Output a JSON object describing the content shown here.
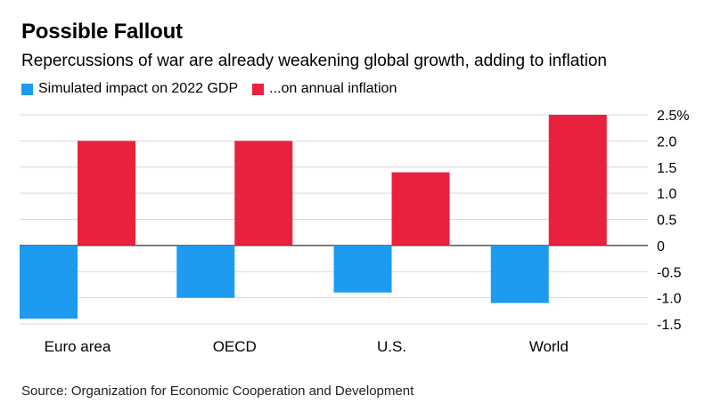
{
  "title": "Possible Fallout",
  "subtitle": "Repercussions of war are already weakening global growth, adding to inflation",
  "source": "Source: Organization for Economic Cooperation and Development",
  "colors": {
    "gdp": "#1d9bf0",
    "inflation": "#e8213f",
    "grid": "#d9d9d9",
    "axis": "#000000"
  },
  "chart_data": {
    "type": "bar",
    "categories": [
      "Euro area",
      "OECD",
      "U.S.",
      "World"
    ],
    "series": [
      {
        "name": "Simulated impact on 2022 GDP",
        "values": [
          -1.4,
          -1.0,
          -0.9,
          -1.1
        ]
      },
      {
        "name": "...on annual inflation",
        "values": [
          2.0,
          2.0,
          1.4,
          2.5
        ]
      }
    ],
    "ylim": [
      -1.5,
      2.5
    ],
    "yticks": [
      2.5,
      2.0,
      1.5,
      1.0,
      0.5,
      0,
      -0.5,
      -1.0,
      -1.5
    ],
    "ytick_labels": [
      "2.5%",
      "2.0",
      "1.5",
      "1.0",
      "0.5",
      "0",
      "-0.5",
      "-1.0",
      "-1.5"
    ],
    "grid": true,
    "legend": "top-left",
    "xlabel": "",
    "ylabel": ""
  }
}
